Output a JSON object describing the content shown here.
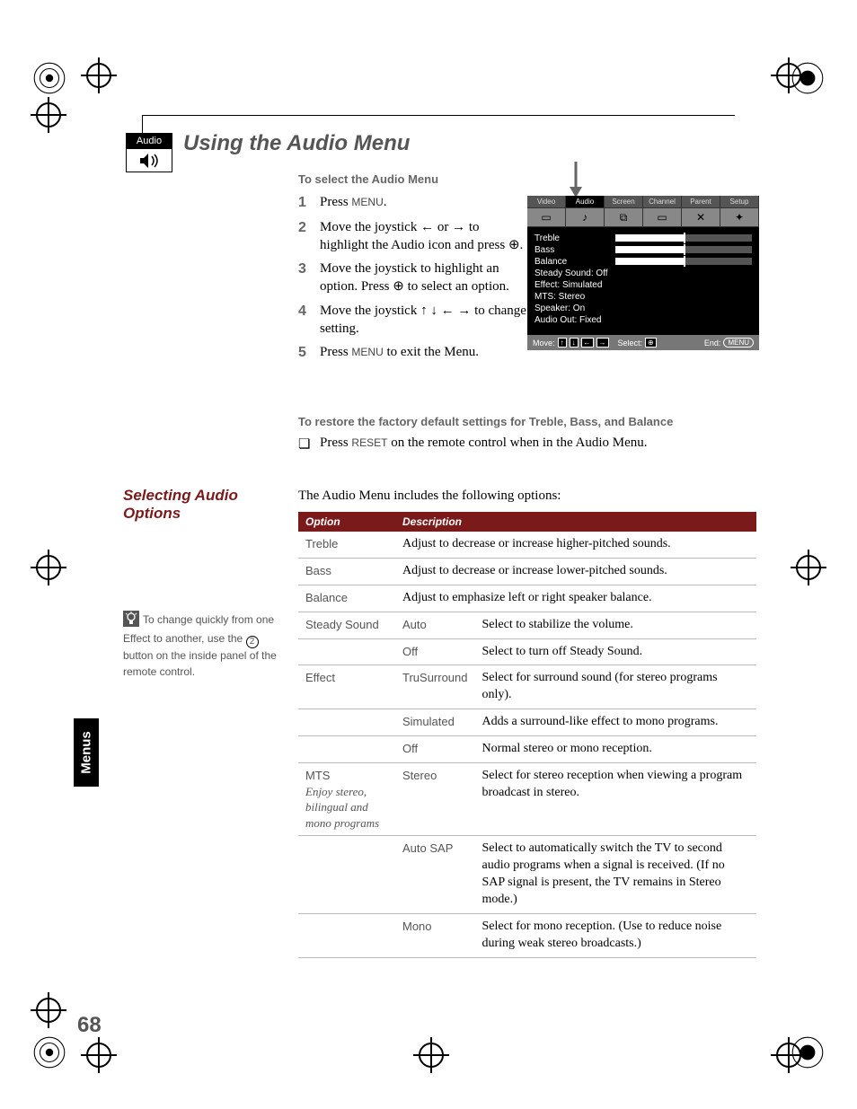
{
  "page_number": "68",
  "side_tab": "Menus",
  "badge_label": "Audio",
  "main_title": "Using the Audio Menu",
  "select_heading": "To select the Audio Menu",
  "steps": {
    "s1": {
      "num": "1",
      "pre": "Press ",
      "key": "MENU",
      "post": "."
    },
    "s2": {
      "num": "2",
      "text": "Move the joystick ← or → to highlight the Audio icon and press ⊕."
    },
    "s3": {
      "num": "3",
      "text": "Move the joystick to highlight an option. Press ⊕ to select an option."
    },
    "s4": {
      "num": "4",
      "text": "Move the joystick ↑ ↓ ← → to change settings. Press ⊕ to select the changed setting."
    },
    "s5": {
      "num": "5",
      "pre": "Press ",
      "key": "MENU",
      "post": " to exit the Menu."
    }
  },
  "restore_heading": "To restore the factory default settings for Treble, Bass, and Balance",
  "restore_line": {
    "pre": "Press ",
    "key": "RESET",
    "post": " on the remote control when in the Audio Menu."
  },
  "section_title": "Selecting Audio Options",
  "intro_line": "The Audio Menu includes the following options:",
  "tip_text_a": "To change quickly from one Effect to another, use the ",
  "tip_text_b": " button on the inside panel of the remote control.",
  "table": {
    "h_option": "Option",
    "h_desc": "Description",
    "rows": [
      {
        "opt": "Treble",
        "val": "",
        "desc": "Adjust to decrease or increase higher-pitched sounds."
      },
      {
        "opt": "Bass",
        "val": "",
        "desc": "Adjust to decrease or increase lower-pitched sounds."
      },
      {
        "opt": "Balance",
        "val": "",
        "desc": "Adjust to emphasize left or right speaker balance."
      },
      {
        "opt": "Steady Sound",
        "val": "Auto",
        "desc": "Select to stabilize the volume."
      },
      {
        "opt": "",
        "val": "Off",
        "desc": "Select to turn off Steady Sound."
      },
      {
        "opt": "Effect",
        "val": "TruSurround",
        "desc": "Select for surround sound (for stereo programs only)."
      },
      {
        "opt": "",
        "val": "Simulated",
        "desc": "Adds a surround-like effect to mono programs."
      },
      {
        "opt": "",
        "val": "Off",
        "desc": "Normal stereo or mono reception."
      },
      {
        "opt": "MTS",
        "opt_sub": "Enjoy stereo, bilingual and mono programs",
        "val": "Stereo",
        "desc": "Select for stereo reception when viewing a program broadcast in stereo."
      },
      {
        "opt": "",
        "val": "Auto SAP",
        "desc": "Select to automatically switch the TV to second audio programs when a signal is received. (If no SAP signal is present, the TV remains in Stereo mode.)"
      },
      {
        "opt": "",
        "val": "Mono",
        "desc": "Select for mono reception. (Use to reduce noise during weak stereo broadcasts.)"
      }
    ]
  },
  "osd": {
    "tabs": [
      "Video",
      "Audio",
      "Screen",
      "Channel",
      "Parent",
      "Setup"
    ],
    "active_tab_index": 1,
    "lines": [
      {
        "k": "Treble",
        "slider": true
      },
      {
        "k": "Bass",
        "slider": true
      },
      {
        "k": "Balance",
        "slider": true
      },
      {
        "k": "Steady Sound: Off"
      },
      {
        "k": "Effect: Simulated"
      },
      {
        "k": "MTS: Stereo"
      },
      {
        "k": "Speaker: On"
      },
      {
        "k": "Audio Out: Fixed"
      }
    ],
    "footer": {
      "move": "Move:",
      "select": "Select:",
      "end": "End:",
      "end_key": "MENU"
    }
  },
  "colors": {
    "accent": "#7b1a1a",
    "gray_text": "#555555",
    "rule": "#bbbbbb"
  }
}
